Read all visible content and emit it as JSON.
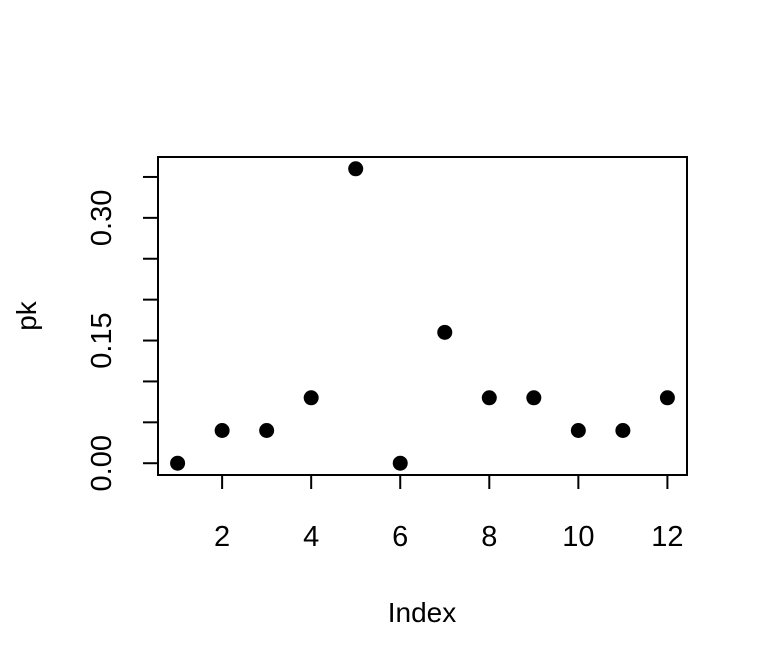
{
  "chart_data": {
    "type": "scatter",
    "title": "",
    "xlabel": "Index",
    "ylabel": "pk",
    "x": [
      1,
      2,
      3,
      4,
      5,
      6,
      7,
      8,
      9,
      10,
      11,
      12
    ],
    "y": [
      0.0,
      0.04,
      0.04,
      0.08,
      0.36,
      0.0,
      0.16,
      0.08,
      0.08,
      0.04,
      0.04,
      0.08
    ],
    "xlim": [
      0.56,
      12.44
    ],
    "ylim": [
      -0.0144,
      0.3744
    ],
    "xticks": [
      2,
      4,
      6,
      8,
      10,
      12
    ],
    "xtick_labels": [
      "2",
      "4",
      "6",
      "8",
      "10",
      "12"
    ],
    "yticks": [
      0.0,
      0.05,
      0.1,
      0.15,
      0.2,
      0.25,
      0.3,
      0.35
    ],
    "ytick_labels": [
      "0.00",
      "",
      "",
      "0.15",
      "",
      "",
      "0.30",
      ""
    ],
    "grid": false,
    "legend": "none",
    "marker_color": "#000000"
  }
}
